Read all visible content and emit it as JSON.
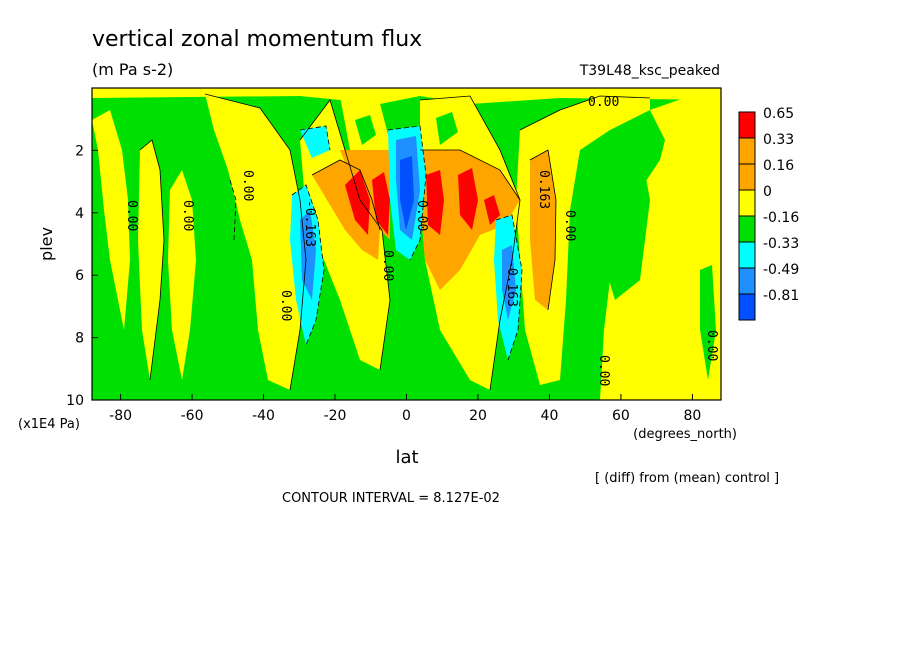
{
  "chart_data": {
    "type": "heatmap",
    "title": "vertical zonal momentum flux",
    "units": "(m Pa s-2)",
    "run_label": "T39L48_ksc_peaked",
    "xlabel": "lat",
    "x_units": "(degrees_north)",
    "ylabel": "plev",
    "y_units": "(x1E4 Pa)",
    "x_ticks": [
      -80,
      -60,
      -40,
      -20,
      0,
      20,
      40,
      60,
      80
    ],
    "y_ticks": [
      2,
      4,
      6,
      8,
      10
    ],
    "xlim": [
      -88,
      88
    ],
    "ylim": [
      10,
      0
    ],
    "colorbar": {
      "labels": [
        "0.65",
        "0.33",
        "0.16",
        "0",
        "-0.16",
        "-0.33",
        "-0.49",
        "-0.81"
      ],
      "colors": [
        "#ff0000",
        "#ffa500",
        "#ffa500",
        "#ffff00",
        "#00e000",
        "#00ffff",
        "#1e90ff",
        "#0050ff"
      ]
    },
    "contour_labels": [
      "0.00",
      "0.163",
      "-0.163"
    ],
    "contour_interval": "CONTOUR INTERVAL = 8.127E-02",
    "footnote": "[ (diff) from (mean) control ]",
    "fill_colors": {
      "strong_positive": "#ff0000",
      "positive": "#ffa500",
      "weak_positive": "#ffff00",
      "weak_negative": "#00e000",
      "negative": "#00ffff",
      "strong_negative": "#1e90ff",
      "extreme_negative": "#0050ff"
    }
  }
}
